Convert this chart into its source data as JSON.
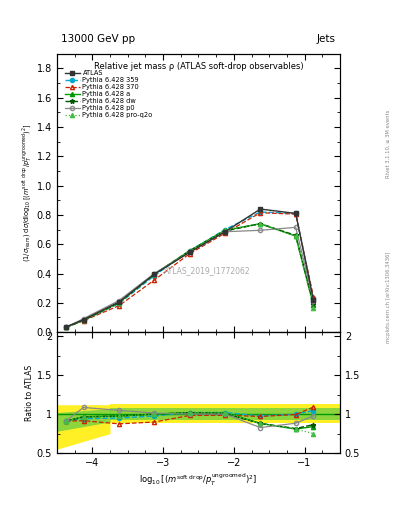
{
  "title_top": "13000 GeV pp",
  "title_right": "Jets",
  "plot_title": "Relative jet mass ρ (ATLAS soft-drop observables)",
  "watermark": "ATLAS_2019_I1772062",
  "xlim": [
    -4.5,
    -0.5
  ],
  "ylim_main": [
    0,
    1.9
  ],
  "ylim_ratio": [
    0.5,
    2.05
  ],
  "atlas_x": [
    -4.375,
    -4.125,
    -3.625,
    -3.125,
    -2.625,
    -2.125,
    -1.625,
    -1.125,
    -0.875
  ],
  "atlas_y": [
    0.035,
    0.085,
    0.205,
    0.395,
    0.545,
    0.685,
    0.84,
    0.81,
    0.22
  ],
  "py359_x": [
    -4.375,
    -4.125,
    -3.625,
    -3.125,
    -2.625,
    -2.125,
    -1.625,
    -1.125,
    -0.875
  ],
  "py359_y": [
    0.032,
    0.08,
    0.195,
    0.385,
    0.555,
    0.7,
    0.82,
    0.81,
    0.23
  ],
  "py370_x": [
    -4.375,
    -4.125,
    -3.625,
    -3.125,
    -2.625,
    -2.125,
    -1.625,
    -1.125,
    -0.875
  ],
  "py370_y": [
    0.032,
    0.078,
    0.18,
    0.355,
    0.535,
    0.675,
    0.815,
    0.805,
    0.24
  ],
  "pya_x": [
    -4.375,
    -4.125,
    -3.625,
    -3.125,
    -2.625,
    -2.125,
    -1.625,
    -1.125,
    -0.875
  ],
  "pya_y": [
    0.032,
    0.082,
    0.2,
    0.395,
    0.555,
    0.695,
    0.74,
    0.655,
    0.185
  ],
  "pydw_x": [
    -4.375,
    -4.125,
    -3.625,
    -3.125,
    -2.625,
    -2.125,
    -1.625,
    -1.125,
    -0.875
  ],
  "pydw_y": [
    0.032,
    0.082,
    0.2,
    0.395,
    0.555,
    0.69,
    0.74,
    0.66,
    0.19
  ],
  "pyp0_x": [
    -4.375,
    -4.125,
    -3.625,
    -3.125,
    -2.625,
    -2.125,
    -1.625,
    -1.125,
    -0.875
  ],
  "pyp0_y": [
    0.032,
    0.092,
    0.215,
    0.4,
    0.545,
    0.685,
    0.695,
    0.715,
    0.215
  ],
  "pyproq2o_x": [
    -4.375,
    -4.125,
    -3.625,
    -3.125,
    -2.625,
    -2.125,
    -1.625,
    -1.125,
    -0.875
  ],
  "pyproq2o_y": [
    0.032,
    0.082,
    0.2,
    0.395,
    0.555,
    0.695,
    0.74,
    0.655,
    0.165
  ],
  "ratio_x": [
    -4.375,
    -4.125,
    -3.625,
    -3.125,
    -2.625,
    -2.125,
    -1.625,
    -1.125,
    -0.875
  ],
  "ratio_py359": [
    0.91,
    0.94,
    0.95,
    0.975,
    1.02,
    1.02,
    0.975,
    1.0,
    1.045
  ],
  "ratio_py370": [
    0.91,
    0.915,
    0.875,
    0.898,
    0.982,
    0.985,
    0.97,
    0.994,
    1.09
  ],
  "ratio_pya": [
    0.91,
    0.965,
    0.975,
    1.0,
    1.018,
    1.015,
    0.88,
    0.808,
    0.84
  ],
  "ratio_pydw": [
    0.91,
    0.965,
    0.975,
    1.0,
    1.018,
    1.007,
    0.88,
    0.815,
    0.865
  ],
  "ratio_pyp0": [
    0.91,
    1.085,
    1.048,
    1.013,
    1.0,
    1.0,
    0.827,
    0.883,
    0.977
  ],
  "ratio_pyproq2o": [
    0.91,
    0.965,
    0.975,
    1.0,
    1.018,
    1.015,
    0.88,
    0.808,
    0.75
  ],
  "color_atlas": "#333333",
  "color_py359": "#00aacc",
  "color_py370": "#cc2200",
  "color_pya": "#009900",
  "color_pydw": "#005500",
  "color_pyp0": "#888888",
  "color_pyproq2o": "#44bb44",
  "right_label": "Rivet 3.1.10, ≥ 3M events",
  "right_label2": "mcplots.cern.ch [arXiv:1306.3436]"
}
